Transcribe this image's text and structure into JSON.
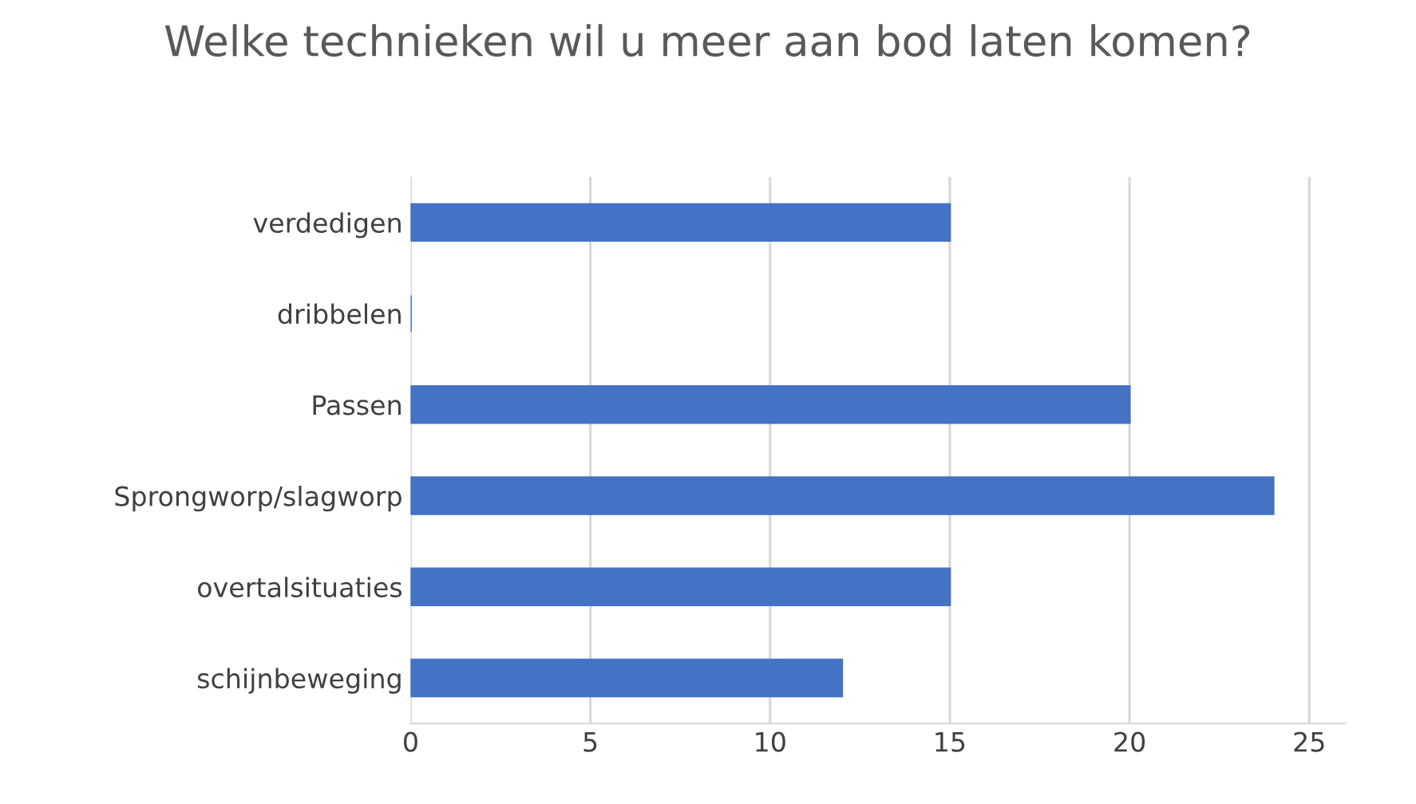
{
  "chart_data": {
    "type": "bar",
    "orientation": "horizontal",
    "title": "Welke technieken wil u meer aan bod laten komen?",
    "categories": [
      "verdedigen",
      "dribbelen",
      "Passen",
      "Sprongworp/slagworp",
      "overtalsituaties",
      "schijnbeweging"
    ],
    "values": [
      15,
      0,
      20,
      24,
      15,
      12
    ],
    "color": "#4472c4",
    "xlim": [
      0,
      26
    ],
    "xticks": [
      0,
      5,
      10,
      15,
      20,
      25
    ],
    "grid": "x"
  }
}
